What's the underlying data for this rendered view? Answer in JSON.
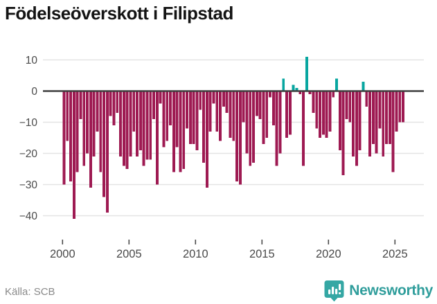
{
  "title": "Födelseöverskott i Filipstad",
  "footer": {
    "source": "Källa: SCB",
    "brand": "Newsworthy"
  },
  "colors": {
    "negative_bar": "#9E1A52",
    "positive_bar": "#08A6A0",
    "grid": "#e4e4e4",
    "zero_line": "#3d3d3d",
    "axis_text": "#4a4a4a",
    "title_text": "#141414",
    "source_text": "#8a8a8a",
    "brand_teal": "#2f9d9b",
    "logo_badge": "#35a7a4"
  },
  "chart_data": {
    "type": "bar",
    "title": "Födelseöverskott i Filipstad",
    "frequency": "quarterly",
    "x_start_year": 2000,
    "x_start_quarter": 1,
    "values": [
      -30,
      -16,
      -29,
      -41,
      -26,
      -9,
      -24,
      -20,
      -31,
      -21,
      -13,
      -26,
      -34,
      -39,
      -8,
      -11,
      -7,
      -21,
      -24,
      -25,
      -21,
      -13,
      -21,
      -19,
      -24,
      -22,
      -22,
      -9,
      -30,
      -4,
      -18,
      -16,
      -11,
      -26,
      -18,
      -26,
      -25,
      -12,
      -17,
      -17,
      -19,
      -6,
      -23,
      -31,
      -13,
      -4,
      -13,
      -16,
      -5,
      -7,
      -15,
      -16,
      -29,
      -30,
      -10,
      -20,
      -24,
      -23,
      -8,
      -9,
      -17,
      -15,
      -2,
      -11,
      -24,
      -20,
      4,
      -15,
      -14,
      2,
      1,
      -1,
      -24,
      11,
      -1,
      -7,
      -12,
      -15,
      -14,
      -15,
      -13,
      -2,
      4,
      -19,
      -27,
      -9,
      -10,
      -21,
      -24,
      -19,
      3,
      -5,
      -21,
      -17,
      -20,
      -12,
      -21,
      -17,
      -17,
      -26,
      -13,
      -10,
      -10
    ],
    "x_tick_labels": [
      "2000",
      "2005",
      "2010",
      "2015",
      "2020",
      "2025"
    ],
    "x_tick_years": [
      2000,
      2005,
      2010,
      2015,
      2020,
      2025
    ],
    "y_ticks": [
      10,
      0,
      -10,
      -20,
      -30,
      -40
    ],
    "ylim": [
      -47,
      14
    ],
    "grid": true,
    "legend": false,
    "zero_line": true
  }
}
